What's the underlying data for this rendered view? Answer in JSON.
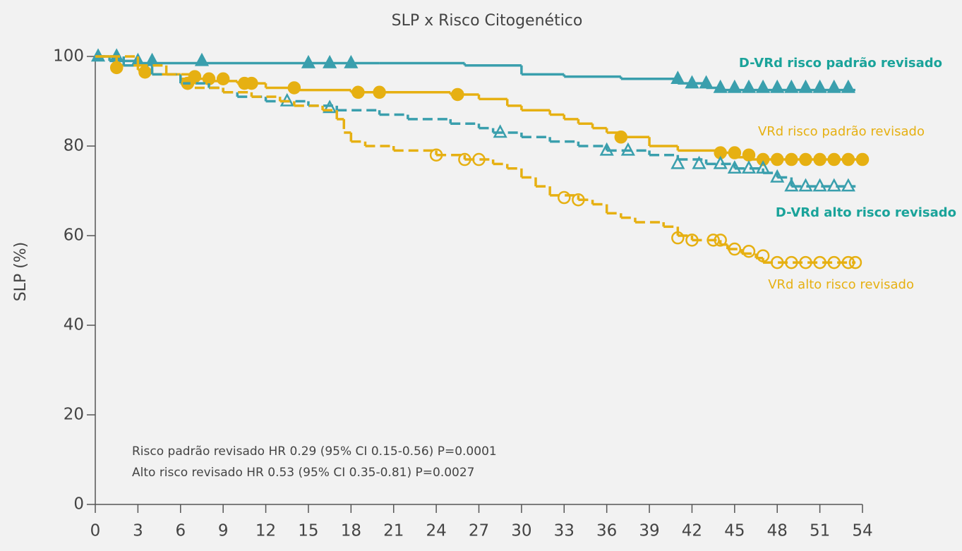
{
  "chart_data": {
    "type": "km",
    "title": "SLP x Risco Citogenético",
    "y_label": "SLP (%)",
    "xlim": [
      0,
      54
    ],
    "ylim": [
      0,
      100
    ],
    "xticks": [
      0,
      3,
      6,
      9,
      12,
      15,
      18,
      21,
      24,
      27,
      30,
      33,
      36,
      39,
      42,
      45,
      48,
      51,
      54
    ],
    "yticks": [
      0,
      20,
      40,
      60,
      80,
      100
    ],
    "annotations": [
      "Risco padrão revisado HR 0.29 (95% CI 0.15-0.56) P=0.0001",
      "Alto risco revisado HR 0.53 (95% CI 0.35-0.81) P=0.0027"
    ],
    "series": [
      {
        "name": "D-VRd risco padrão revisado",
        "color": "#3a9fad",
        "label_color": "#1aa39a",
        "label_bold": true,
        "dashed": false,
        "marker": "triangle",
        "filled": true,
        "x": [
          0,
          1,
          3,
          20,
          26,
          30,
          33,
          37,
          41,
          43,
          44,
          53.5
        ],
        "values": [
          100,
          99,
          98.5,
          98.5,
          98,
          96,
          95.5,
          95,
          94,
          93,
          92.5,
          92.5
        ],
        "censor_x": [
          0.2,
          1.5,
          3,
          4,
          7.5,
          15,
          16.5,
          18,
          41,
          42,
          43,
          44,
          45,
          46,
          47,
          48,
          49,
          50,
          51,
          52,
          53
        ],
        "censor_values": [
          100,
          100,
          99,
          99,
          99,
          98.5,
          98.5,
          98.5,
          95,
          94,
          94,
          93,
          93,
          93,
          93,
          93,
          93,
          93,
          93,
          93,
          93
        ]
      },
      {
        "name": "VRd risco padrão revisado",
        "color": "#e6b012",
        "label_color": "#e6b012",
        "label_bold": false,
        "dashed": false,
        "marker": "circle",
        "filled": true,
        "x": [
          0,
          1.5,
          3,
          4,
          6,
          8,
          10,
          12,
          14,
          18,
          25,
          27,
          29,
          30,
          32,
          33,
          34,
          35,
          36,
          37,
          39,
          41,
          44,
          45,
          46,
          54
        ],
        "values": [
          100,
          98,
          97,
          96,
          95,
          94.5,
          94,
          93,
          92.5,
          92,
          91.5,
          90.5,
          89,
          88,
          87,
          86,
          85,
          84,
          83,
          82,
          80,
          79,
          78.5,
          77.5,
          77,
          77
        ],
        "censor_x": [
          1.5,
          3.5,
          6.5,
          7,
          8,
          9,
          10.5,
          11,
          14,
          18.5,
          20,
          25.5,
          37,
          44,
          45,
          46,
          47,
          48,
          49,
          50,
          51,
          52,
          53,
          54
        ],
        "censor_values": [
          97.5,
          96.5,
          94,
          95.5,
          95,
          95,
          94,
          94,
          93,
          92,
          92,
          91.5,
          82,
          78.5,
          78.5,
          78,
          77,
          77,
          77,
          77,
          77,
          77,
          77,
          77
        ]
      },
      {
        "name": "D-VRd alto risco revisado",
        "color": "#3a9fad",
        "label_color": "#1aa39a",
        "label_bold": true,
        "dashed": true,
        "marker": "triangle",
        "filled": false,
        "x": [
          0,
          2,
          4,
          6,
          8,
          9,
          10,
          12,
          15,
          17,
          20,
          22,
          25,
          27,
          28,
          30,
          32,
          34,
          36,
          39,
          41,
          43,
          45,
          47,
          48,
          49,
          53.5
        ],
        "values": [
          100,
          98,
          96,
          94,
          93,
          92,
          91,
          90,
          89,
          88,
          87,
          86,
          85,
          84,
          83,
          82,
          81,
          80,
          79,
          78,
          77,
          76,
          75,
          74,
          73,
          71,
          71
        ],
        "censor_x": [
          13.5,
          16.5,
          28.5,
          36,
          37.5,
          41,
          42.5,
          44,
          45,
          46,
          47,
          48,
          49,
          50,
          51,
          52,
          53
        ],
        "censor_values": [
          90,
          88.5,
          83,
          79,
          79,
          76,
          76,
          76,
          75,
          75,
          75,
          73,
          71,
          71,
          71,
          71,
          71
        ]
      },
      {
        "name": "VRd alto risco revisado",
        "color": "#e6b012",
        "label_color": "#e6b012",
        "label_bold": false,
        "dashed": true,
        "marker": "circle",
        "filled": false,
        "x": [
          0,
          3,
          5,
          7,
          9,
          11,
          13,
          14,
          16,
          17,
          17.5,
          18,
          19,
          21,
          24,
          26,
          28,
          29,
          30,
          31,
          32,
          34,
          35,
          36,
          37,
          38,
          40,
          41,
          42,
          44,
          44.5,
          45.5,
          46.5,
          47,
          53.5
        ],
        "values": [
          100,
          98,
          96,
          93,
          92,
          91,
          90,
          89,
          88,
          86,
          83,
          81,
          80,
          79,
          78,
          77,
          76,
          75,
          73,
          71,
          69,
          68,
          67,
          65,
          64,
          63,
          62,
          60,
          59,
          58,
          57,
          56,
          55,
          54,
          54
        ],
        "censor_x": [
          6.5,
          24,
          26,
          27,
          33,
          34,
          41,
          42,
          43.5,
          44,
          45,
          46,
          47,
          48,
          49,
          50,
          51,
          52,
          53,
          53.5
        ],
        "censor_values": [
          94,
          78,
          77,
          77,
          68.5,
          68,
          59.5,
          59,
          59,
          59,
          57,
          56.5,
          55.5,
          54,
          54,
          54,
          54,
          54,
          54,
          54
        ]
      }
    ]
  }
}
